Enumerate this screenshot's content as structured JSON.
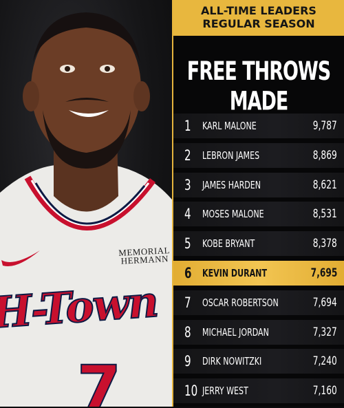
{
  "photo": {
    "sponsor_line1": "MEMORIAL",
    "sponsor_line2": "HERMANN",
    "jersey_word": "H-Town",
    "jersey_number": "7"
  },
  "banner": {
    "line1": "ALL-TIME LEADERS",
    "line2": "REGULAR SEASON"
  },
  "title": "FREE THROWS MADE",
  "highlight_color": "#e8b73e",
  "leaders": [
    {
      "rank": "1",
      "name": "KARL MALONE",
      "value": "9,787",
      "highlight": false
    },
    {
      "rank": "2",
      "name": "LEBRON JAMES",
      "value": "8,869",
      "highlight": false
    },
    {
      "rank": "3",
      "name": "JAMES HARDEN",
      "value": "8,621",
      "highlight": false
    },
    {
      "rank": "4",
      "name": "MOSES MALONE",
      "value": "8,531",
      "highlight": false
    },
    {
      "rank": "5",
      "name": "KOBE BRYANT",
      "value": "8,378",
      "highlight": false
    },
    {
      "rank": "6",
      "name": "KEVIN DURANT",
      "value": "7,695",
      "highlight": true
    },
    {
      "rank": "7",
      "name": "OSCAR ROBERTSON",
      "value": "7,694",
      "highlight": false
    },
    {
      "rank": "8",
      "name": "MICHAEL JORDAN",
      "value": "7,327",
      "highlight": false
    },
    {
      "rank": "9",
      "name": "DIRK NOWITZKI",
      "value": "7,240",
      "highlight": false
    },
    {
      "rank": "10",
      "name": "JERRY WEST",
      "value": "7,160",
      "highlight": false
    }
  ]
}
